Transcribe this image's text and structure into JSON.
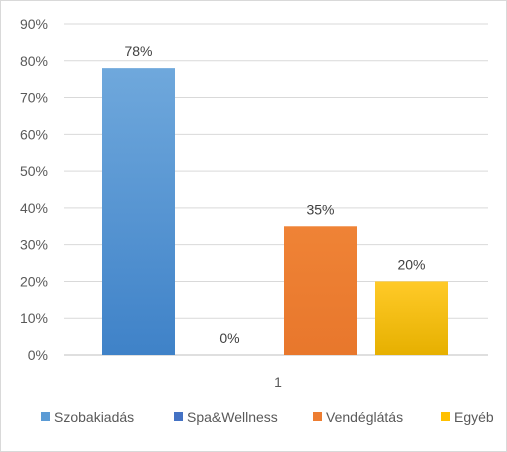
{
  "chart_data": {
    "type": "bar",
    "categories": [
      "1"
    ],
    "series": [
      {
        "name": "Szobakiadás",
        "values": [
          78
        ],
        "label": "78%",
        "color": "#5b9bd5"
      },
      {
        "name": "Spa&Wellness",
        "values": [
          0
        ],
        "label": "0%",
        "color": "#4472c4"
      },
      {
        "name": "Vendéglátás",
        "values": [
          35
        ],
        "label": "35%",
        "color": "#ed7d31"
      },
      {
        "name": "Egyéb",
        "values": [
          20
        ],
        "label": "20%",
        "color": "#ffc000"
      }
    ],
    "ylim": [
      0,
      90
    ],
    "yticks": [
      "0%",
      "10%",
      "20%",
      "30%",
      "40%",
      "50%",
      "60%",
      "70%",
      "80%",
      "90%"
    ],
    "grid": true,
    "legend": "bottom"
  }
}
